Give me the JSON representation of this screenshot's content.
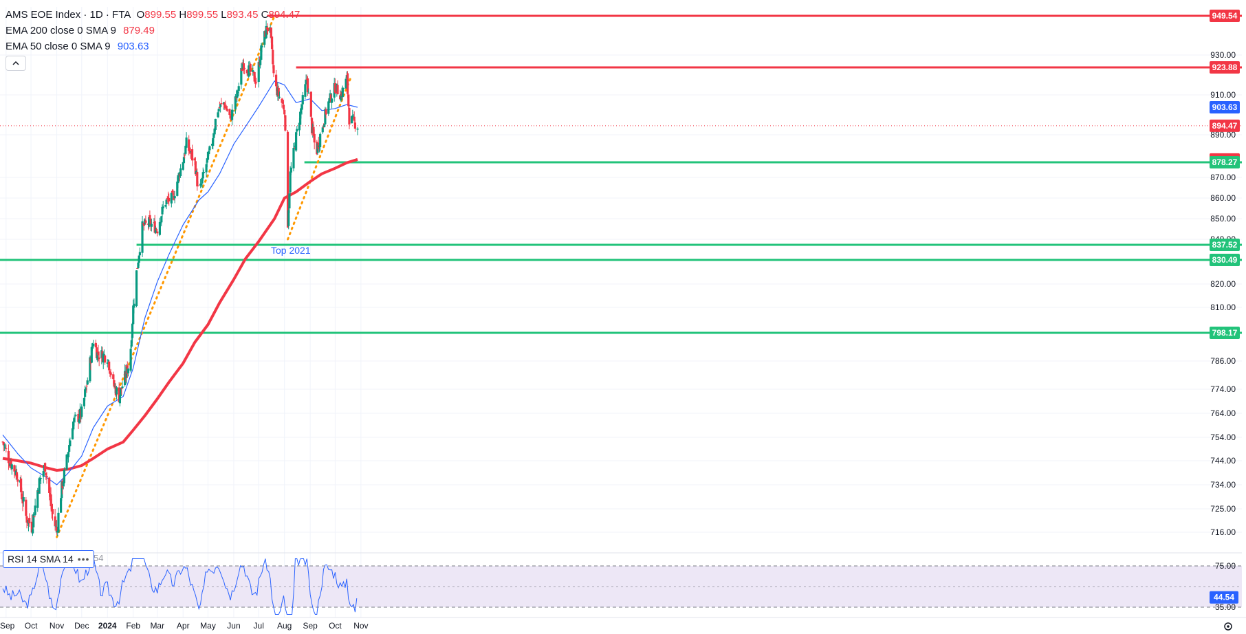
{
  "legend": {
    "symbol": "AMS EOE Index · 1D · FTA",
    "open_label": "O",
    "open": "899.55",
    "high_label": "H",
    "high": "899.55",
    "low_label": "L",
    "low": "893.45",
    "close_label": "C",
    "close": "894.47",
    "ema200_text": "EMA 200 close 0 SMA 9",
    "ema200_value": "879.49",
    "ema50_text": "EMA 50 close 0 SMA 9",
    "ema50_value": "903.63"
  },
  "rsi_panel": {
    "label": "RSI 14 SMA 14",
    "ghost_value": "54",
    "more_icon": "more-dots-icon",
    "collapse_icon": "chevron-up-icon",
    "settings_icon": "gear-icon"
  },
  "annotations": {
    "top2021": "Top 2021"
  },
  "colors": {
    "up": "#089981",
    "down": "#f23645",
    "ema200": "#f23645",
    "ema50": "#2962ff",
    "support": "#22c37a",
    "resistance": "#f23645",
    "trendline": "#ff9800",
    "rsi": "#2962ff",
    "rsi_band": "#ede7f6"
  },
  "chart_data": {
    "type": "candlestick",
    "x_labels": [
      "Sep",
      "Oct",
      "Nov",
      "Dec",
      "2024",
      "Feb",
      "Mar",
      "Apr",
      "May",
      "Jun",
      "Jul",
      "Aug",
      "Sep",
      "Oct",
      "Nov"
    ],
    "y_tick_labels": [
      "716.00",
      "725.00",
      "734.00",
      "744.00",
      "754.00",
      "764.00",
      "774.00",
      "786.00",
      "810.00",
      "820.00",
      "840.00",
      "850.00",
      "860.00",
      "870.00",
      "890.00",
      "910.00",
      "930.00"
    ],
    "y_ticks": [
      716,
      725,
      734,
      744,
      754,
      764,
      774,
      786,
      810,
      820,
      840,
      850,
      860,
      870,
      890,
      910,
      930
    ],
    "price_tags": [
      {
        "label": "949.54",
        "value": 949.54,
        "kind": "resistance"
      },
      {
        "label": "923.88",
        "value": 923.88,
        "kind": "resistance"
      },
      {
        "label": "903.63",
        "value": 903.63,
        "kind": "ema50"
      },
      {
        "label": "894.47",
        "value": 894.47,
        "kind": "last"
      },
      {
        "label": "879.49",
        "value": 879.49,
        "kind": "ema200"
      },
      {
        "label": "878.27",
        "value": 878.27,
        "kind": "support"
      },
      {
        "label": "837.52",
        "value": 837.52,
        "kind": "support"
      },
      {
        "label": "830.49",
        "value": 830.49,
        "kind": "support"
      },
      {
        "label": "798.17",
        "value": 798.17,
        "kind": "support"
      }
    ],
    "horizontal_levels": [
      {
        "value": 949.54,
        "color": "resistance",
        "from": "2024-07-11",
        "to": "end"
      },
      {
        "value": 923.88,
        "color": "resistance",
        "from": "2024-08-15",
        "to": "end"
      },
      {
        "value": 878.27,
        "color": "support",
        "from": "2024-08-25",
        "to": "end"
      },
      {
        "value": 837.52,
        "color": "support",
        "from": "2024-02-05",
        "to": "end"
      },
      {
        "value": 830.49,
        "color": "support",
        "from": "start",
        "to": "end"
      },
      {
        "value": 798.17,
        "color": "support",
        "from": "start",
        "to": "end"
      }
    ],
    "trendlines": [
      {
        "from": {
          "date": "2023-11-01",
          "value": 712
        },
        "to": {
          "date": "2024-07-20",
          "value": 949.54
        }
      },
      {
        "from": {
          "date": "2024-08-05",
          "value": 840
        },
        "to": {
          "date": "2024-10-20",
          "value": 919
        }
      }
    ],
    "ema50": [
      {
        "date": "2023-08-28",
        "value": 755
      },
      {
        "date": "2023-09-15",
        "value": 747
      },
      {
        "date": "2023-10-01",
        "value": 741
      },
      {
        "date": "2023-10-20",
        "value": 737
      },
      {
        "date": "2023-11-01",
        "value": 734
      },
      {
        "date": "2023-11-15",
        "value": 739
      },
      {
        "date": "2023-12-01",
        "value": 746
      },
      {
        "date": "2023-12-15",
        "value": 758
      },
      {
        "date": "2024-01-01",
        "value": 767
      },
      {
        "date": "2024-01-20",
        "value": 771
      },
      {
        "date": "2024-02-01",
        "value": 783
      },
      {
        "date": "2024-02-15",
        "value": 805
      },
      {
        "date": "2024-03-01",
        "value": 821
      },
      {
        "date": "2024-03-15",
        "value": 833
      },
      {
        "date": "2024-04-01",
        "value": 847
      },
      {
        "date": "2024-04-20",
        "value": 859
      },
      {
        "date": "2024-05-01",
        "value": 863
      },
      {
        "date": "2024-05-15",
        "value": 872
      },
      {
        "date": "2024-06-01",
        "value": 886
      },
      {
        "date": "2024-06-15",
        "value": 894
      },
      {
        "date": "2024-07-01",
        "value": 904
      },
      {
        "date": "2024-07-20",
        "value": 917
      },
      {
        "date": "2024-08-01",
        "value": 915
      },
      {
        "date": "2024-08-15",
        "value": 906
      },
      {
        "date": "2024-09-01",
        "value": 908
      },
      {
        "date": "2024-09-15",
        "value": 902
      },
      {
        "date": "2024-10-01",
        "value": 903
      },
      {
        "date": "2024-10-15",
        "value": 905
      },
      {
        "date": "2024-10-28",
        "value": 903.63
      }
    ],
    "ema200": [
      {
        "date": "2023-08-28",
        "value": 745
      },
      {
        "date": "2023-09-15",
        "value": 744
      },
      {
        "date": "2023-10-01",
        "value": 743
      },
      {
        "date": "2023-10-20",
        "value": 741
      },
      {
        "date": "2023-11-01",
        "value": 740
      },
      {
        "date": "2023-11-15",
        "value": 740.5
      },
      {
        "date": "2023-12-01",
        "value": 742
      },
      {
        "date": "2023-12-15",
        "value": 745
      },
      {
        "date": "2024-01-01",
        "value": 749
      },
      {
        "date": "2024-01-20",
        "value": 752
      },
      {
        "date": "2024-02-01",
        "value": 757
      },
      {
        "date": "2024-02-15",
        "value": 763
      },
      {
        "date": "2024-03-01",
        "value": 770
      },
      {
        "date": "2024-03-15",
        "value": 777
      },
      {
        "date": "2024-04-01",
        "value": 785
      },
      {
        "date": "2024-04-15",
        "value": 794
      },
      {
        "date": "2024-05-01",
        "value": 802
      },
      {
        "date": "2024-05-15",
        "value": 812
      },
      {
        "date": "2024-06-01",
        "value": 822
      },
      {
        "date": "2024-06-15",
        "value": 831
      },
      {
        "date": "2024-07-01",
        "value": 839
      },
      {
        "date": "2024-07-20",
        "value": 850
      },
      {
        "date": "2024-08-01",
        "value": 860
      },
      {
        "date": "2024-08-15",
        "value": 863
      },
      {
        "date": "2024-09-01",
        "value": 868
      },
      {
        "date": "2024-09-15",
        "value": 872
      },
      {
        "date": "2024-10-01",
        "value": 875
      },
      {
        "date": "2024-10-15",
        "value": 878
      },
      {
        "date": "2024-10-28",
        "value": 879.49
      }
    ],
    "price_path": [
      {
        "date": "2023-08-28",
        "value": 752
      },
      {
        "date": "2023-09-05",
        "value": 744
      },
      {
        "date": "2023-09-15",
        "value": 738
      },
      {
        "date": "2023-09-25",
        "value": 722
      },
      {
        "date": "2023-10-02",
        "value": 718
      },
      {
        "date": "2023-10-10",
        "value": 734
      },
      {
        "date": "2023-10-18",
        "value": 742
      },
      {
        "date": "2023-10-26",
        "value": 724
      },
      {
        "date": "2023-11-01",
        "value": 716
      },
      {
        "date": "2023-11-05",
        "value": 729
      },
      {
        "date": "2023-11-12",
        "value": 742
      },
      {
        "date": "2023-11-20",
        "value": 760
      },
      {
        "date": "2023-12-01",
        "value": 764
      },
      {
        "date": "2023-12-08",
        "value": 778
      },
      {
        "date": "2023-12-15",
        "value": 795
      },
      {
        "date": "2023-12-20",
        "value": 789
      },
      {
        "date": "2024-01-01",
        "value": 788
      },
      {
        "date": "2024-01-08",
        "value": 776
      },
      {
        "date": "2024-01-15",
        "value": 771
      },
      {
        "date": "2024-01-22",
        "value": 779
      },
      {
        "date": "2024-01-28",
        "value": 786
      },
      {
        "date": "2024-02-01",
        "value": 810
      },
      {
        "date": "2024-02-05",
        "value": 825
      },
      {
        "date": "2024-02-12",
        "value": 846
      },
      {
        "date": "2024-02-20",
        "value": 848
      },
      {
        "date": "2024-03-01",
        "value": 845
      },
      {
        "date": "2024-03-10",
        "value": 858
      },
      {
        "date": "2024-03-20",
        "value": 860
      },
      {
        "date": "2024-03-28",
        "value": 873
      },
      {
        "date": "2024-04-05",
        "value": 886
      },
      {
        "date": "2024-04-15",
        "value": 878
      },
      {
        "date": "2024-04-20",
        "value": 861
      },
      {
        "date": "2024-04-28",
        "value": 876
      },
      {
        "date": "2024-05-05",
        "value": 885
      },
      {
        "date": "2024-05-12",
        "value": 902
      },
      {
        "date": "2024-05-20",
        "value": 906
      },
      {
        "date": "2024-05-28",
        "value": 898
      },
      {
        "date": "2024-06-05",
        "value": 910
      },
      {
        "date": "2024-06-12",
        "value": 926
      },
      {
        "date": "2024-06-20",
        "value": 922
      },
      {
        "date": "2024-06-28",
        "value": 917
      },
      {
        "date": "2024-07-05",
        "value": 935
      },
      {
        "date": "2024-07-11",
        "value": 944
      },
      {
        "date": "2024-07-15",
        "value": 941
      },
      {
        "date": "2024-07-20",
        "value": 915
      },
      {
        "date": "2024-07-28",
        "value": 907
      },
      {
        "date": "2024-08-01",
        "value": 903
      },
      {
        "date": "2024-08-05",
        "value": 848
      },
      {
        "date": "2024-08-08",
        "value": 872
      },
      {
        "date": "2024-08-15",
        "value": 889
      },
      {
        "date": "2024-08-22",
        "value": 905
      },
      {
        "date": "2024-08-28",
        "value": 918
      },
      {
        "date": "2024-09-03",
        "value": 893
      },
      {
        "date": "2024-09-08",
        "value": 882
      },
      {
        "date": "2024-09-15",
        "value": 893
      },
      {
        "date": "2024-09-22",
        "value": 905
      },
      {
        "date": "2024-10-01",
        "value": 914
      },
      {
        "date": "2024-10-08",
        "value": 910
      },
      {
        "date": "2024-10-15",
        "value": 918
      },
      {
        "date": "2024-10-18",
        "value": 898
      },
      {
        "date": "2024-10-24",
        "value": 896
      },
      {
        "date": "2024-10-28",
        "value": 894.47
      }
    ],
    "rsi": {
      "levels": [
        75,
        35
      ],
      "tick_labels": [
        "75.00",
        "35.00"
      ],
      "current_label": "44.54",
      "current": 44.54,
      "ylim": [
        25,
        85
      ]
    },
    "date_range": [
      "2023-08-28",
      "2024-11-05"
    ]
  }
}
